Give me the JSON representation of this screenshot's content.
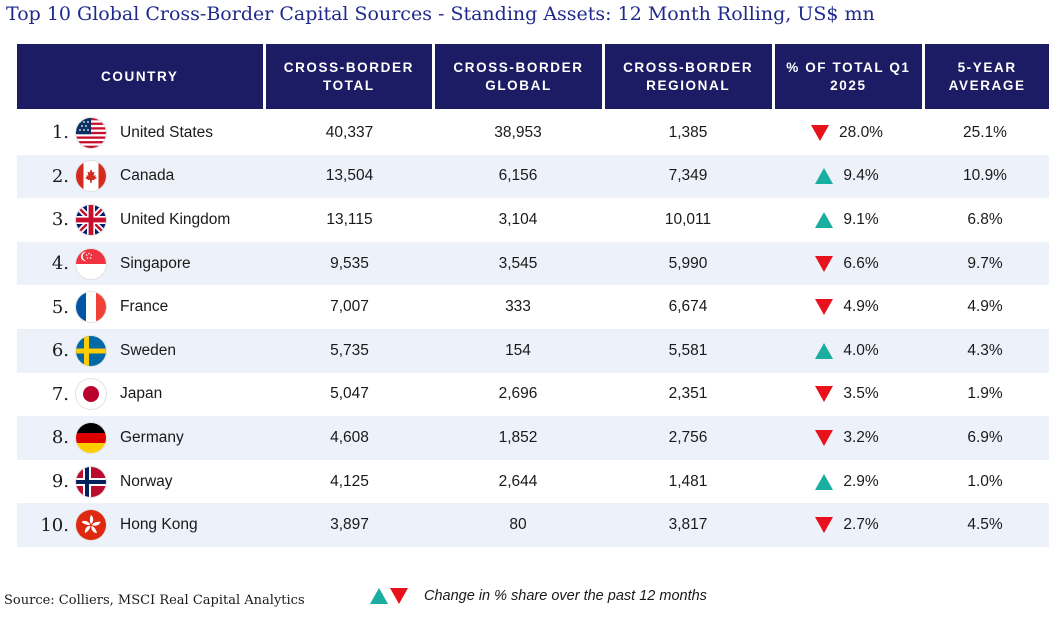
{
  "title": "Top 10 Global Cross-Border Capital Sources - Standing Assets: 12 Month Rolling, US$ mn",
  "headers": {
    "country": "COUNTRY",
    "total": "CROSS-BORDER TOTAL",
    "global": "CROSS-BORDER GLOBAL",
    "regional": "CROSS-BORDER REGIONAL",
    "pct": "% OF TOTAL Q1 2025",
    "avg": "5-YEAR AVERAGE"
  },
  "rows": [
    {
      "rank": "1.",
      "country": "United States",
      "flag": "us-flag-icon",
      "total": "40,337",
      "global": "38,953",
      "regional": "1,385",
      "trend": "down",
      "pct": "28.0%",
      "avg": "25.1%"
    },
    {
      "rank": "2.",
      "country": "Canada",
      "flag": "canada-flag-icon",
      "total": "13,504",
      "global": "6,156",
      "regional": "7,349",
      "trend": "up",
      "pct": "9.4%",
      "avg": "10.9%"
    },
    {
      "rank": "3.",
      "country": "United Kingdom",
      "flag": "uk-flag-icon",
      "total": "13,115",
      "global": "3,104",
      "regional": "10,011",
      "trend": "up",
      "pct": "9.1%",
      "avg": "6.8%"
    },
    {
      "rank": "4.",
      "country": "Singapore",
      "flag": "singapore-flag-icon",
      "total": "9,535",
      "global": "3,545",
      "regional": "5,990",
      "trend": "down",
      "pct": "6.6%",
      "avg": "9.7%"
    },
    {
      "rank": "5.",
      "country": "France",
      "flag": "france-flag-icon",
      "total": "7,007",
      "global": "333",
      "regional": "6,674",
      "trend": "down",
      "pct": "4.9%",
      "avg": "4.9%"
    },
    {
      "rank": "6.",
      "country": "Sweden",
      "flag": "sweden-flag-icon",
      "total": "5,735",
      "global": "154",
      "regional": "5,581",
      "trend": "up",
      "pct": "4.0%",
      "avg": "4.3%"
    },
    {
      "rank": "7.",
      "country": "Japan",
      "flag": "japan-flag-icon",
      "total": "5,047",
      "global": "2,696",
      "regional": "2,351",
      "trend": "down",
      "pct": "3.5%",
      "avg": "1.9%"
    },
    {
      "rank": "8.",
      "country": "Germany",
      "flag": "germany-flag-icon",
      "total": "4,608",
      "global": "1,852",
      "regional": "2,756",
      "trend": "down",
      "pct": "3.2%",
      "avg": "6.9%"
    },
    {
      "rank": "9.",
      "country": "Norway",
      "flag": "norway-flag-icon",
      "total": "4,125",
      "global": "2,644",
      "regional": "1,481",
      "trend": "up",
      "pct": "2.9%",
      "avg": "1.0%"
    },
    {
      "rank": "10.",
      "country": "Hong Kong",
      "flag": "hong-kong-flag-icon",
      "total": "3,897",
      "global": "80",
      "regional": "3,817",
      "trend": "down",
      "pct": "2.7%",
      "avg": "4.5%"
    }
  ],
  "footer": {
    "source": "Source: Colliers, MSCI Real Capital Analytics",
    "legend": "Change in % share over the past 12 months"
  },
  "colors": {
    "header_bg": "#1b1c63",
    "title": "#1f2a8c",
    "up": "#1aaea0",
    "down": "#e8121c",
    "alt_row": "#edf1fa"
  }
}
